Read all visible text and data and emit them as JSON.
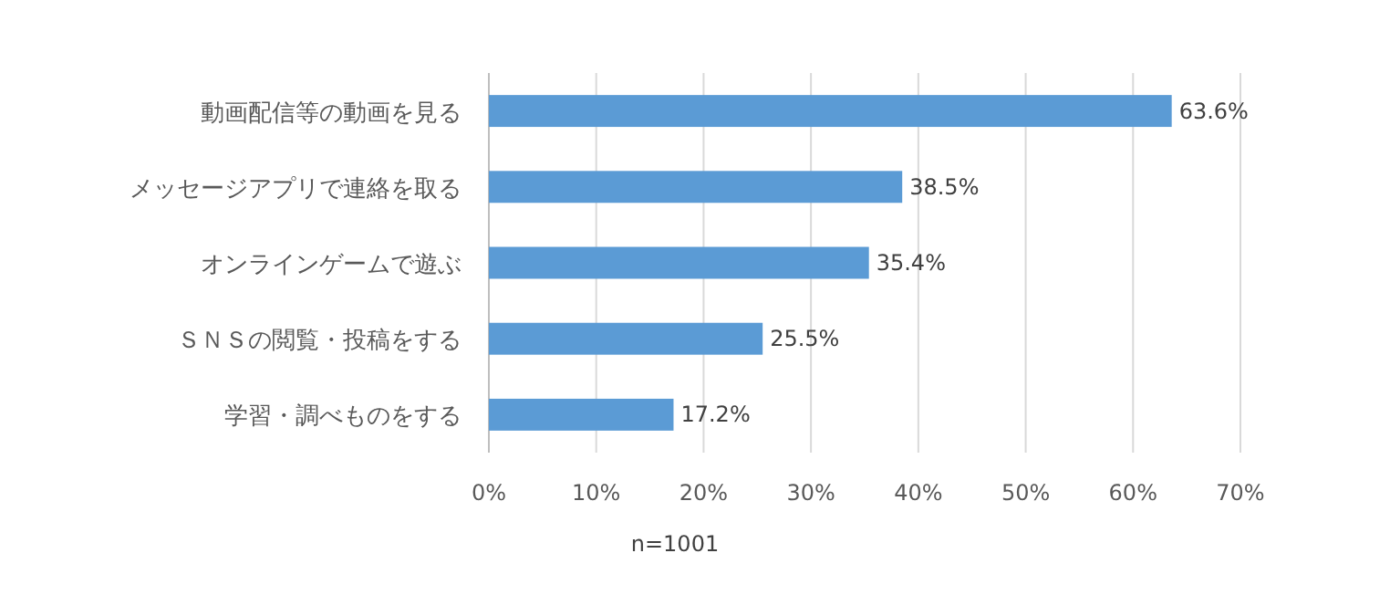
{
  "chart_data": {
    "type": "bar",
    "orientation": "horizontal",
    "categories": [
      "動画配信等の動画を見る",
      "メッセージアプリで連絡を取る",
      "オンラインゲームで遊ぶ",
      "ＳＮＳの閲覧・投稿をする",
      "学習・調べものをする"
    ],
    "values": [
      63.6,
      38.5,
      35.4,
      25.5,
      17.2
    ],
    "value_labels": [
      "63.6%",
      "38.5%",
      "35.4%",
      "25.5%",
      "17.2%"
    ],
    "color": "#5b9bd5",
    "xlim": [
      0,
      70
    ],
    "xticks": [
      {
        "value": 0,
        "label": "0%"
      },
      {
        "value": 10,
        "label": "10%"
      },
      {
        "value": 20,
        "label": "20%"
      },
      {
        "value": 30,
        "label": "30%"
      },
      {
        "value": 40,
        "label": "40%"
      },
      {
        "value": 50,
        "label": "50%"
      },
      {
        "value": 60,
        "label": "60%"
      },
      {
        "value": 70,
        "label": "70%"
      }
    ],
    "grid": "x",
    "annotations": [
      "n=1001"
    ]
  }
}
